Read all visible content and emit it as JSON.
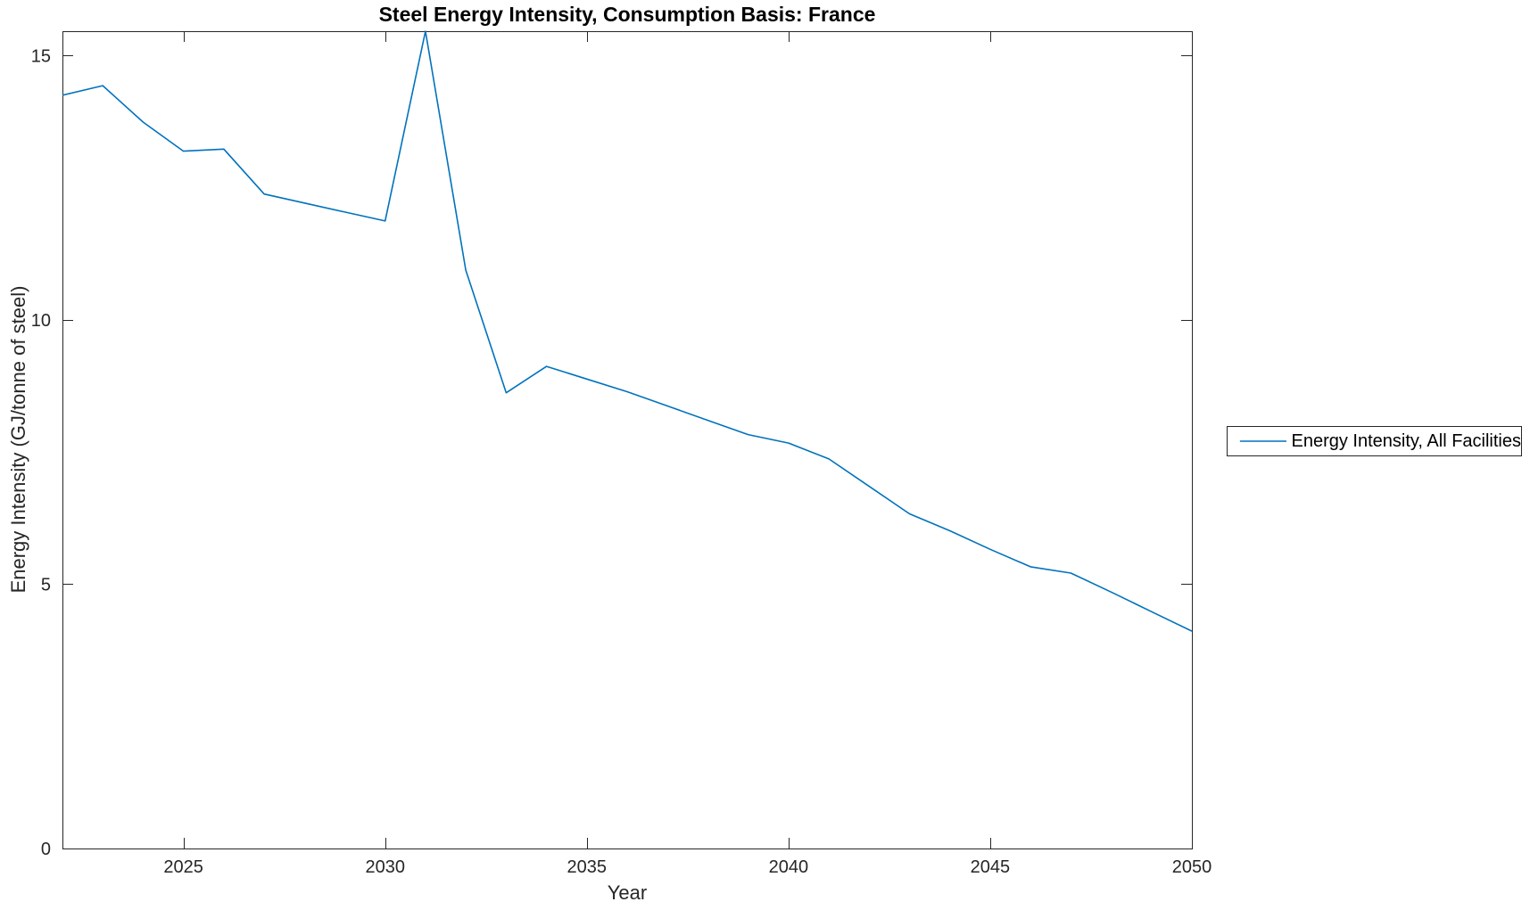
{
  "title": "Steel Energy Intensity, Consumption Basis: France",
  "xlabel": "Year",
  "ylabel": "Energy Intensity (GJ/tonne of steel)",
  "legend": {
    "position": "right-outside",
    "entries": [
      {
        "label": "Energy Intensity, All Facilities",
        "color": "#0072BD"
      }
    ]
  },
  "colors": {
    "line": "#0072BD",
    "axis": "#262626",
    "tick_text": "#262626",
    "title_text": "#000000",
    "background": "#ffffff"
  },
  "chart_data": {
    "type": "line",
    "title": "Steel Energy Intensity, Consumption Basis: France",
    "xlabel": "Year",
    "ylabel": "Energy Intensity (GJ/tonne of steel)",
    "x": [
      2022,
      2023,
      2024,
      2025,
      2026,
      2027,
      2028,
      2029,
      2030,
      2031,
      2032,
      2033,
      2034,
      2035,
      2036,
      2037,
      2038,
      2039,
      2040,
      2041,
      2042,
      2043,
      2044,
      2045,
      2046,
      2047,
      2048,
      2049,
      2050
    ],
    "series": [
      {
        "name": "Energy Intensity, All Facilities",
        "color": "#0072BD",
        "values": [
          14.25,
          14.43,
          13.74,
          13.19,
          13.23,
          12.38,
          12.21,
          12.04,
          11.87,
          15.46,
          10.94,
          8.62,
          9.12,
          8.88,
          8.64,
          8.37,
          8.1,
          7.83,
          7.67,
          7.37,
          6.85,
          6.33,
          6.01,
          5.66,
          5.33,
          5.21,
          4.85,
          4.48,
          4.11
        ]
      }
    ],
    "xlim": [
      2022,
      2050
    ],
    "ylim": [
      0,
      15.46
    ],
    "x_ticks": [
      2025,
      2030,
      2035,
      2040,
      2045,
      2050
    ],
    "y_ticks": [
      0,
      5,
      10,
      15
    ],
    "grid": false,
    "box": true,
    "tick_direction": "in",
    "legend_position": "right-outside"
  }
}
